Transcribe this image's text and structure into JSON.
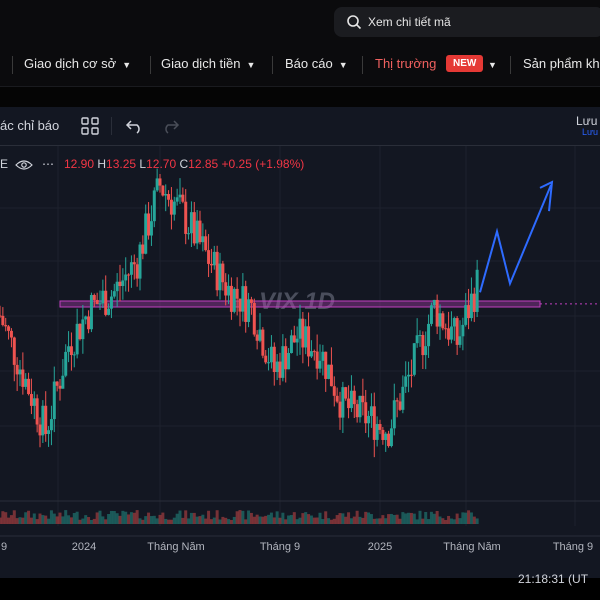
{
  "search": {
    "placeholder": "Xem chi tiết mã"
  },
  "nav": {
    "items": [
      {
        "label": "Giao dịch cơ sở",
        "caret": "▼"
      },
      {
        "label": "Giao dịch tiền",
        "caret": "▼"
      },
      {
        "label": "Báo cáo",
        "caret": "▼"
      },
      {
        "label": "Thị trường",
        "caret": "▼",
        "badge": "NEW"
      },
      {
        "label": "Sản phẩm kh"
      }
    ]
  },
  "toolbar": {
    "indicators_label": "ác chỉ báo",
    "save_label": "Lưu",
    "save_sub": "Lưu"
  },
  "legend": {
    "open_value": "12.90",
    "high_label": "H",
    "high_value": "13.25",
    "low_label": "L",
    "low_value": "12.70",
    "close_label": "C",
    "close_value": "12.85",
    "change": "+0.25 (+1.98%)",
    "prefix_glyph": "E"
  },
  "chart_data": {
    "type": "candlestick",
    "title": "VIX 1D",
    "x_tick_labels": [
      "9",
      "2024",
      "Tháng Năm",
      "Tháng 9",
      "2025",
      "Tháng Năm",
      "Tháng 9"
    ],
    "close_approx": [
      {
        "x": "2023-08",
        "y": 11.5
      },
      {
        "x": "2023-09",
        "y": 9.5
      },
      {
        "x": "2023-10",
        "y": 7.5
      },
      {
        "x": "2023-11",
        "y": 10.5
      },
      {
        "x": "2023-12",
        "y": 11.8
      },
      {
        "x": "2024-01",
        "y": 12.3
      },
      {
        "x": "2024-02",
        "y": 13.4
      },
      {
        "x": "2024-03",
        "y": 16.0
      },
      {
        "x": "2024-04",
        "y": 15.0
      },
      {
        "x": "2024-05",
        "y": 13.6
      },
      {
        "x": "2024-06",
        "y": 12.4
      },
      {
        "x": "2024-07",
        "y": 11.8
      },
      {
        "x": "2024-08",
        "y": 9.6
      },
      {
        "x": "2024-09",
        "y": 10.8
      },
      {
        "x": "2024-10",
        "y": 10.3
      },
      {
        "x": "2024-11",
        "y": 8.4
      },
      {
        "x": "2024-12",
        "y": 8.0
      },
      {
        "x": "2025-01",
        "y": 7.6
      },
      {
        "x": "2025-02",
        "y": 9.6
      },
      {
        "x": "2025-03",
        "y": 11.8
      },
      {
        "x": "2025-04",
        "y": 10.6
      },
      {
        "x": "2025-05",
        "y": 12.85
      }
    ],
    "resistance_zone": [
      11.8,
      12.0
    ],
    "projection_arrow": true,
    "volume": true
  },
  "colors": {
    "up": "#26a69a",
    "down": "#ef5350",
    "zone": "#c040c0",
    "arrow": "#2e6bff",
    "badge": "#e53935",
    "active_nav": "#f0615f"
  },
  "status": {
    "clock": "21:18:31 (UT"
  }
}
